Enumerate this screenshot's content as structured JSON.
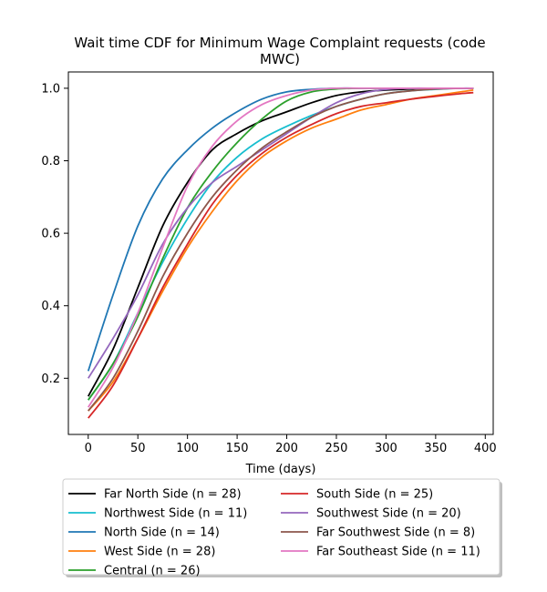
{
  "chart_data": {
    "type": "line",
    "title_line1": "Wait time CDF for Minimum Wage Complaint  requests (code",
    "title_line2": "MWC)",
    "xlabel": "Time (days)",
    "ylabel": "",
    "xlim": [
      -20,
      408
    ],
    "ylim": [
      0.045,
      1.045
    ],
    "xticks": [
      0,
      50,
      100,
      150,
      200,
      250,
      300,
      350,
      400
    ],
    "yticks": [
      0.2,
      0.4,
      0.6,
      0.8,
      1.0
    ],
    "xtick_labels": [
      "0",
      "50",
      "100",
      "150",
      "200",
      "250",
      "300",
      "350",
      "400"
    ],
    "ytick_labels": [
      "0.2",
      "0.4",
      "0.6",
      "0.8",
      "1.0"
    ],
    "grid": false,
    "legend_placement": "below",
    "x": [
      0,
      25,
      50,
      75,
      100,
      125,
      150,
      175,
      200,
      225,
      250,
      275,
      300,
      325,
      350,
      375,
      388
    ],
    "series": [
      {
        "name": "Far North Side (n = 28)",
        "color": "#000000",
        "values": [
          0.15,
          0.28,
          0.45,
          0.62,
          0.74,
          0.83,
          0.875,
          0.91,
          0.935,
          0.96,
          0.98,
          0.99,
          0.995,
          0.998,
          1.0,
          1.0,
          1.0
        ]
      },
      {
        "name": "Northwest Side (n = 11)",
        "color": "#17becf",
        "values": [
          0.14,
          0.24,
          0.38,
          0.52,
          0.64,
          0.74,
          0.81,
          0.86,
          0.895,
          0.925,
          0.95,
          0.97,
          0.985,
          0.993,
          0.997,
          1.0,
          1.0
        ]
      },
      {
        "name": "North Side (n = 14)",
        "color": "#1f77b4",
        "values": [
          0.22,
          0.43,
          0.62,
          0.75,
          0.83,
          0.89,
          0.935,
          0.97,
          0.99,
          0.997,
          1.0,
          1.0,
          1.0,
          1.0,
          1.0,
          1.0,
          1.0
        ]
      },
      {
        "name": "West Side (n = 28)",
        "color": "#ff7f0e",
        "values": [
          0.11,
          0.19,
          0.31,
          0.44,
          0.56,
          0.66,
          0.745,
          0.81,
          0.855,
          0.89,
          0.915,
          0.94,
          0.955,
          0.97,
          0.98,
          0.99,
          0.995
        ]
      },
      {
        "name": "Central (n = 26)",
        "color": "#2ca02c",
        "values": [
          0.14,
          0.24,
          0.37,
          0.53,
          0.67,
          0.77,
          0.85,
          0.915,
          0.965,
          0.99,
          0.998,
          1.0,
          1.0,
          1.0,
          1.0,
          1.0,
          1.0
        ]
      },
      {
        "name": "South Side (n = 25)",
        "color": "#d62728",
        "values": [
          0.09,
          0.18,
          0.31,
          0.45,
          0.57,
          0.68,
          0.76,
          0.82,
          0.865,
          0.9,
          0.93,
          0.95,
          0.96,
          0.97,
          0.978,
          0.985,
          0.988
        ]
      },
      {
        "name": "Southwest Side (n = 20)",
        "color": "#9467bd",
        "values": [
          0.2,
          0.31,
          0.43,
          0.57,
          0.67,
          0.74,
          0.785,
          0.83,
          0.875,
          0.92,
          0.96,
          0.985,
          0.997,
          1.0,
          1.0,
          1.0,
          1.0
        ]
      },
      {
        "name": "Far Southwest Side (n = 8)",
        "color": "#8c564b",
        "values": [
          0.11,
          0.2,
          0.33,
          0.48,
          0.6,
          0.7,
          0.775,
          0.835,
          0.88,
          0.92,
          0.95,
          0.97,
          0.985,
          0.993,
          0.998,
          1.0,
          1.0
        ]
      },
      {
        "name": "Far Southeast Side (n = 11)",
        "color": "#e377c2",
        "values": [
          0.12,
          0.23,
          0.38,
          0.56,
          0.73,
          0.84,
          0.91,
          0.955,
          0.98,
          0.995,
          1.0,
          1.0,
          1.0,
          1.0,
          1.0,
          1.0,
          1.0
        ]
      }
    ]
  }
}
